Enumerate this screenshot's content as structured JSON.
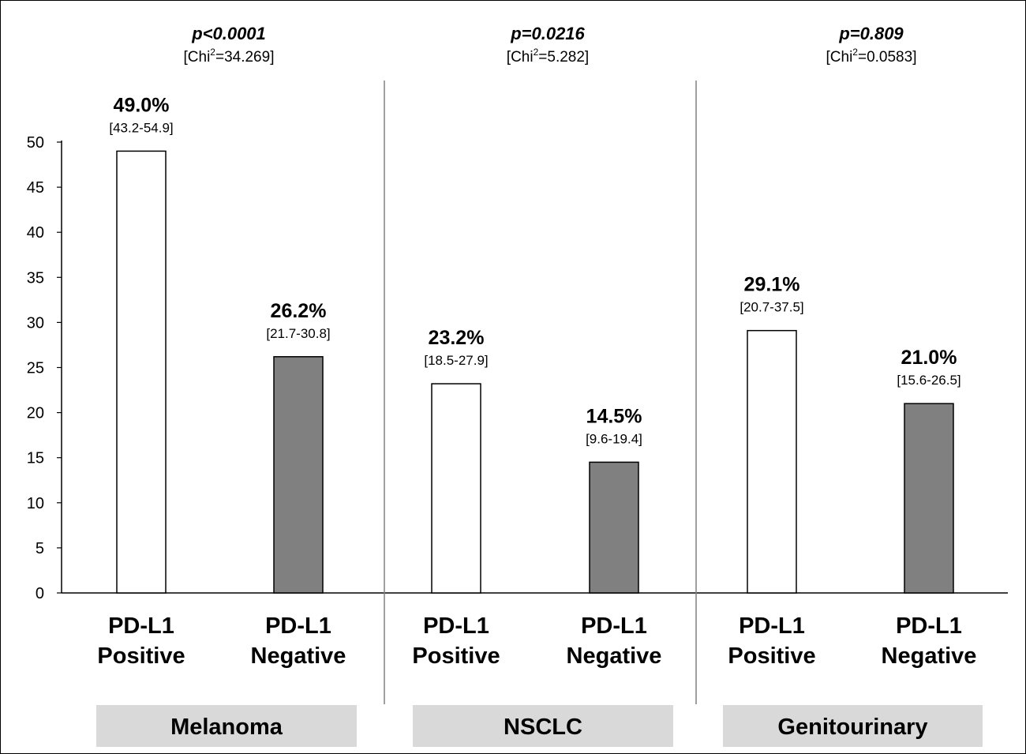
{
  "chart_data": {
    "type": "bar",
    "title": "",
    "xlabel": "",
    "ylabel": "",
    "ylim": [
      0,
      50
    ],
    "yticks": [
      0,
      5,
      10,
      15,
      20,
      25,
      30,
      35,
      40,
      45,
      50
    ],
    "grid": false,
    "legend": "none",
    "colors": {
      "positive": "#ffffff",
      "negative": "#808080",
      "group_box": "#d9d9d9"
    },
    "groups": [
      {
        "name": "Melanoma",
        "p_value": "p<0.0001",
        "chi_prefix": "[Chi",
        "chi_sup": "2",
        "chi_value": "=34.269]",
        "bars": [
          {
            "label_line1": "PD-L1",
            "label_line2": "Positive",
            "value": 49.0,
            "value_label": "49.0%",
            "ci": "[43.2-54.9]",
            "fill": "positive"
          },
          {
            "label_line1": "PD-L1",
            "label_line2": "Negative",
            "value": 26.2,
            "value_label": "26.2%",
            "ci": "[21.7-30.8]",
            "fill": "negative"
          }
        ]
      },
      {
        "name": "NSCLC",
        "p_value": "p=0.0216",
        "chi_prefix": "[Chi",
        "chi_sup": "2",
        "chi_value": "=5.282]",
        "bars": [
          {
            "label_line1": "PD-L1",
            "label_line2": "Positive",
            "value": 23.2,
            "value_label": "23.2%",
            "ci": "[18.5-27.9]",
            "fill": "positive"
          },
          {
            "label_line1": "PD-L1",
            "label_line2": "Negative",
            "value": 14.5,
            "value_label": "14.5%",
            "ci": "[9.6-19.4]",
            "fill": "negative"
          }
        ]
      },
      {
        "name": "Genitourinary",
        "p_value": "p=0.809",
        "chi_prefix": "[Chi",
        "chi_sup": "2",
        "chi_value": "=0.0583]",
        "bars": [
          {
            "label_line1": "PD-L1",
            "label_line2": "Positive",
            "value": 29.1,
            "value_label": "29.1%",
            "ci": "[20.7-37.5]",
            "fill": "positive"
          },
          {
            "label_line1": "PD-L1",
            "label_line2": "Negative",
            "value": 21.0,
            "value_label": "21.0%",
            "ci": "[15.6-26.5]",
            "fill": "negative"
          }
        ]
      }
    ]
  }
}
